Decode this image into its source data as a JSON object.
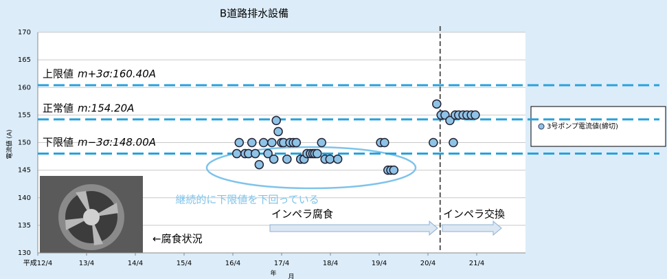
{
  "chart_data": {
    "type": "scatter",
    "title": "B道路排水設備",
    "ylabel": "電流値 (A)",
    "xlabel_year": "年",
    "xlabel_month": "月",
    "xlim": [
      12,
      22
    ],
    "ylim": [
      130,
      170
    ],
    "xticks": [
      {
        "value": 12,
        "label": "平成12/4"
      },
      {
        "value": 13,
        "label": "13/4"
      },
      {
        "value": 14,
        "label": "14/4"
      },
      {
        "value": 15,
        "label": "15/4"
      },
      {
        "value": 16,
        "label": "16/4"
      },
      {
        "value": 17,
        "label": "17/4"
      },
      {
        "value": 18,
        "label": "18/4"
      },
      {
        "value": 19,
        "label": "19/4"
      },
      {
        "value": 20,
        "label": "20/4"
      },
      {
        "value": 21,
        "label": "21/4"
      }
    ],
    "yticks": [
      130,
      135,
      140,
      145,
      150,
      155,
      160,
      165,
      170
    ],
    "grid": true,
    "series": [
      {
        "name": "3号ポンプ電流値(締切)",
        "color": "#8fc3e6",
        "x": [
          16.08,
          16.13,
          16.25,
          16.32,
          16.39,
          16.46,
          16.54,
          16.63,
          16.72,
          16.8,
          16.84,
          16.89,
          16.93,
          17.0,
          17.04,
          17.11,
          17.17,
          17.24,
          17.3,
          17.39,
          17.46,
          17.52,
          17.59,
          17.64,
          17.68,
          17.73,
          17.82,
          17.89,
          17.99,
          18.15,
          19.03,
          19.11,
          19.18,
          19.24,
          19.3,
          20.11,
          20.18,
          20.27,
          20.35,
          20.45,
          20.52,
          20.56,
          20.63,
          20.72,
          20.8,
          20.89,
          20.97
        ],
        "values": [
          148,
          150,
          148,
          148,
          150,
          148,
          146,
          150,
          148,
          150,
          147,
          154,
          152,
          150,
          150,
          147,
          150,
          150,
          150,
          147,
          147,
          148,
          148,
          148,
          148,
          148,
          150,
          147,
          147,
          147,
          150,
          150,
          145,
          145,
          145,
          150,
          157,
          155,
          155,
          154,
          150,
          155,
          155,
          155,
          155,
          155,
          155
        ]
      }
    ],
    "reference_lines": [
      {
        "label": "上限値",
        "formula": "m+3σ:160.40A",
        "value": 160.4
      },
      {
        "label": "正常値",
        "formula": "m:154.20A",
        "value": 154.2
      },
      {
        "label": "下限値",
        "formula": "m−3σ:148.00A",
        "value": 148.0
      }
    ],
    "event_x": 20.25,
    "annotations": {
      "oval": "継続的に下限値を下回っている",
      "corrosion": "インペラ腐食",
      "replace": "インペラ交換",
      "photo": "←腐食状況"
    },
    "legend": "right"
  }
}
